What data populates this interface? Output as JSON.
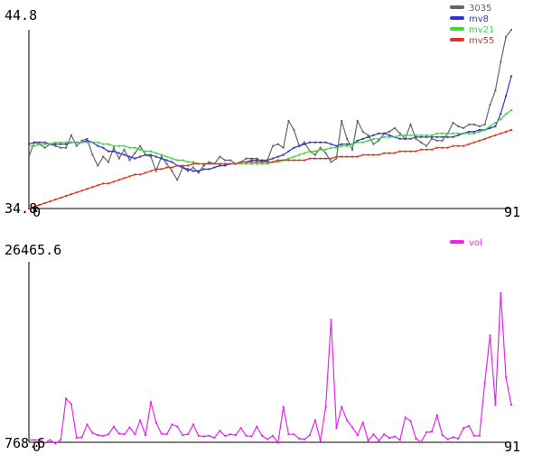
{
  "chart_data": [
    {
      "type": "line",
      "ylim": [
        34.8,
        44.8
      ],
      "xlim": [
        0,
        91
      ],
      "y_tick_labels": [
        "44.8",
        "34.8"
      ],
      "x_tick_labels": [
        "0",
        "91"
      ],
      "legend_position": "top-right",
      "series": [
        {
          "name": "3035",
          "color": "#666666",
          "values": [
            37.7,
            38.5,
            38.4,
            38.2,
            38.4,
            38.3,
            38.2,
            38.2,
            38.9,
            38.3,
            38.6,
            38.7,
            37.8,
            37.2,
            37.7,
            37.4,
            38.2,
            37.6,
            38.1,
            37.5,
            37.9,
            38.3,
            37.8,
            37.7,
            36.9,
            37.7,
            37.3,
            36.9,
            36.4,
            37.1,
            36.9,
            37.1,
            36.8,
            37.2,
            37.4,
            37.3,
            37.7,
            37.5,
            37.5,
            37.3,
            37.4,
            37.6,
            37.6,
            37.6,
            37.4,
            37.5,
            38.3,
            38.4,
            38.2,
            39.7,
            39.2,
            38.3,
            38.5,
            38.0,
            37.8,
            38.2,
            37.9,
            37.4,
            37.6,
            39.7,
            38.7,
            38.1,
            39.7,
            39.1,
            38.9,
            38.4,
            38.6,
            39.0,
            39.1,
            39.3,
            39.0,
            38.7,
            39.5,
            38.7,
            38.5,
            38.3,
            38.7,
            38.6,
            38.6,
            39.0,
            39.6,
            39.4,
            39.3,
            39.5,
            39.5,
            39.4,
            39.5,
            40.6,
            41.4,
            43.0,
            44.4,
            44.8
          ]
        },
        {
          "name": "mv8",
          "color": "#3333cc",
          "values": [
            38.4,
            38.5,
            38.5,
            38.5,
            38.4,
            38.4,
            38.4,
            38.4,
            38.5,
            38.5,
            38.5,
            38.6,
            38.5,
            38.3,
            38.2,
            38.0,
            38.0,
            37.9,
            37.8,
            37.7,
            37.6,
            37.7,
            37.8,
            37.8,
            37.7,
            37.6,
            37.5,
            37.4,
            37.2,
            37.1,
            37.0,
            36.9,
            36.9,
            37.0,
            37.0,
            37.1,
            37.2,
            37.2,
            37.3,
            37.3,
            37.4,
            37.4,
            37.5,
            37.5,
            37.5,
            37.5,
            37.6,
            37.7,
            37.8,
            38.0,
            38.2,
            38.3,
            38.4,
            38.5,
            38.5,
            38.5,
            38.5,
            38.4,
            38.3,
            38.4,
            38.4,
            38.4,
            38.6,
            38.7,
            38.8,
            38.9,
            39.0,
            39.0,
            38.9,
            38.8,
            38.7,
            38.7,
            38.7,
            38.8,
            38.8,
            38.8,
            38.8,
            38.8,
            38.8,
            38.8,
            38.8,
            38.9,
            39.0,
            39.1,
            39.1,
            39.2,
            39.2,
            39.3,
            39.4,
            40.1,
            41.1,
            42.2
          ]
        },
        {
          "name": "mv21",
          "color": "#33dd33",
          "values": [
            38.3,
            38.3,
            38.4,
            38.4,
            38.4,
            38.5,
            38.5,
            38.5,
            38.5,
            38.5,
            38.5,
            38.5,
            38.5,
            38.5,
            38.4,
            38.4,
            38.3,
            38.3,
            38.3,
            38.2,
            38.2,
            38.1,
            38.0,
            38.0,
            37.9,
            37.8,
            37.7,
            37.6,
            37.5,
            37.5,
            37.4,
            37.4,
            37.3,
            37.3,
            37.3,
            37.3,
            37.3,
            37.3,
            37.3,
            37.3,
            37.3,
            37.3,
            37.3,
            37.3,
            37.3,
            37.3,
            37.4,
            37.4,
            37.5,
            37.6,
            37.7,
            37.8,
            37.9,
            38.0,
            38.0,
            38.1,
            38.1,
            38.2,
            38.2,
            38.3,
            38.3,
            38.4,
            38.5,
            38.5,
            38.6,
            38.7,
            38.7,
            38.8,
            38.8,
            38.8,
            38.9,
            38.9,
            38.9,
            38.9,
            38.9,
            38.9,
            38.9,
            39.0,
            39.0,
            39.0,
            39.0,
            39.0,
            39.0,
            39.0,
            39.0,
            39.1,
            39.2,
            39.4,
            39.6,
            39.8,
            40.1,
            40.3
          ]
        },
        {
          "name": "mv55",
          "color": "#dd3322",
          "values": [
            34.8,
            34.9,
            35.0,
            35.1,
            35.2,
            35.3,
            35.4,
            35.5,
            35.6,
            35.7,
            35.8,
            35.9,
            36.0,
            36.1,
            36.2,
            36.2,
            36.3,
            36.4,
            36.5,
            36.6,
            36.7,
            36.7,
            36.8,
            36.9,
            37.0,
            37.0,
            37.1,
            37.1,
            37.2,
            37.2,
            37.2,
            37.3,
            37.3,
            37.3,
            37.3,
            37.3,
            37.3,
            37.3,
            37.3,
            37.3,
            37.4,
            37.4,
            37.4,
            37.4,
            37.4,
            37.4,
            37.4,
            37.5,
            37.5,
            37.5,
            37.5,
            37.5,
            37.5,
            37.6,
            37.6,
            37.6,
            37.6,
            37.6,
            37.7,
            37.7,
            37.7,
            37.7,
            37.7,
            37.8,
            37.8,
            37.8,
            37.8,
            37.9,
            37.9,
            37.9,
            38.0,
            38.0,
            38.0,
            38.0,
            38.1,
            38.1,
            38.1,
            38.2,
            38.2,
            38.2,
            38.3,
            38.3,
            38.3,
            38.4,
            38.5,
            38.6,
            38.7,
            38.8,
            38.9,
            39.0,
            39.1,
            39.2
          ]
        }
      ]
    },
    {
      "type": "line",
      "ylim": [
        768.6,
        26465.6
      ],
      "xlim": [
        0,
        91
      ],
      "y_tick_labels": [
        "26465.6",
        "768.6"
      ],
      "x_tick_labels": [
        "0",
        "91"
      ],
      "legend_position": "top-right",
      "series": [
        {
          "name": "vol",
          "color": "#ee22ee",
          "values": [
            1100,
            1100,
            1100,
            700,
            1100,
            600,
            1100,
            7000,
            6200,
            1400,
            1500,
            3300,
            2100,
            1800,
            1700,
            1900,
            3000,
            2000,
            1900,
            2900,
            1900,
            3900,
            1800,
            6500,
            3600,
            2000,
            1900,
            3300,
            3000,
            1800,
            1900,
            3300,
            1700,
            1600,
            1700,
            1400,
            2400,
            1700,
            1900,
            1800,
            2800,
            1700,
            1600,
            3000,
            1700,
            1200,
            1700,
            700,
            5800,
            1900,
            1900,
            1300,
            1200,
            1800,
            3900,
            1000,
            5800,
            18200,
            2800,
            5800,
            3900,
            2900,
            1800,
            3600,
            1000,
            1900,
            1000,
            1900,
            1400,
            1600,
            1100,
            4300,
            3800,
            1300,
            800,
            2200,
            2300,
            4600,
            1800,
            1200,
            1500,
            1300,
            2800,
            3100,
            1700,
            1700,
            9300,
            16000,
            6100,
            22000,
            10000,
            6100
          ]
        }
      ]
    }
  ]
}
